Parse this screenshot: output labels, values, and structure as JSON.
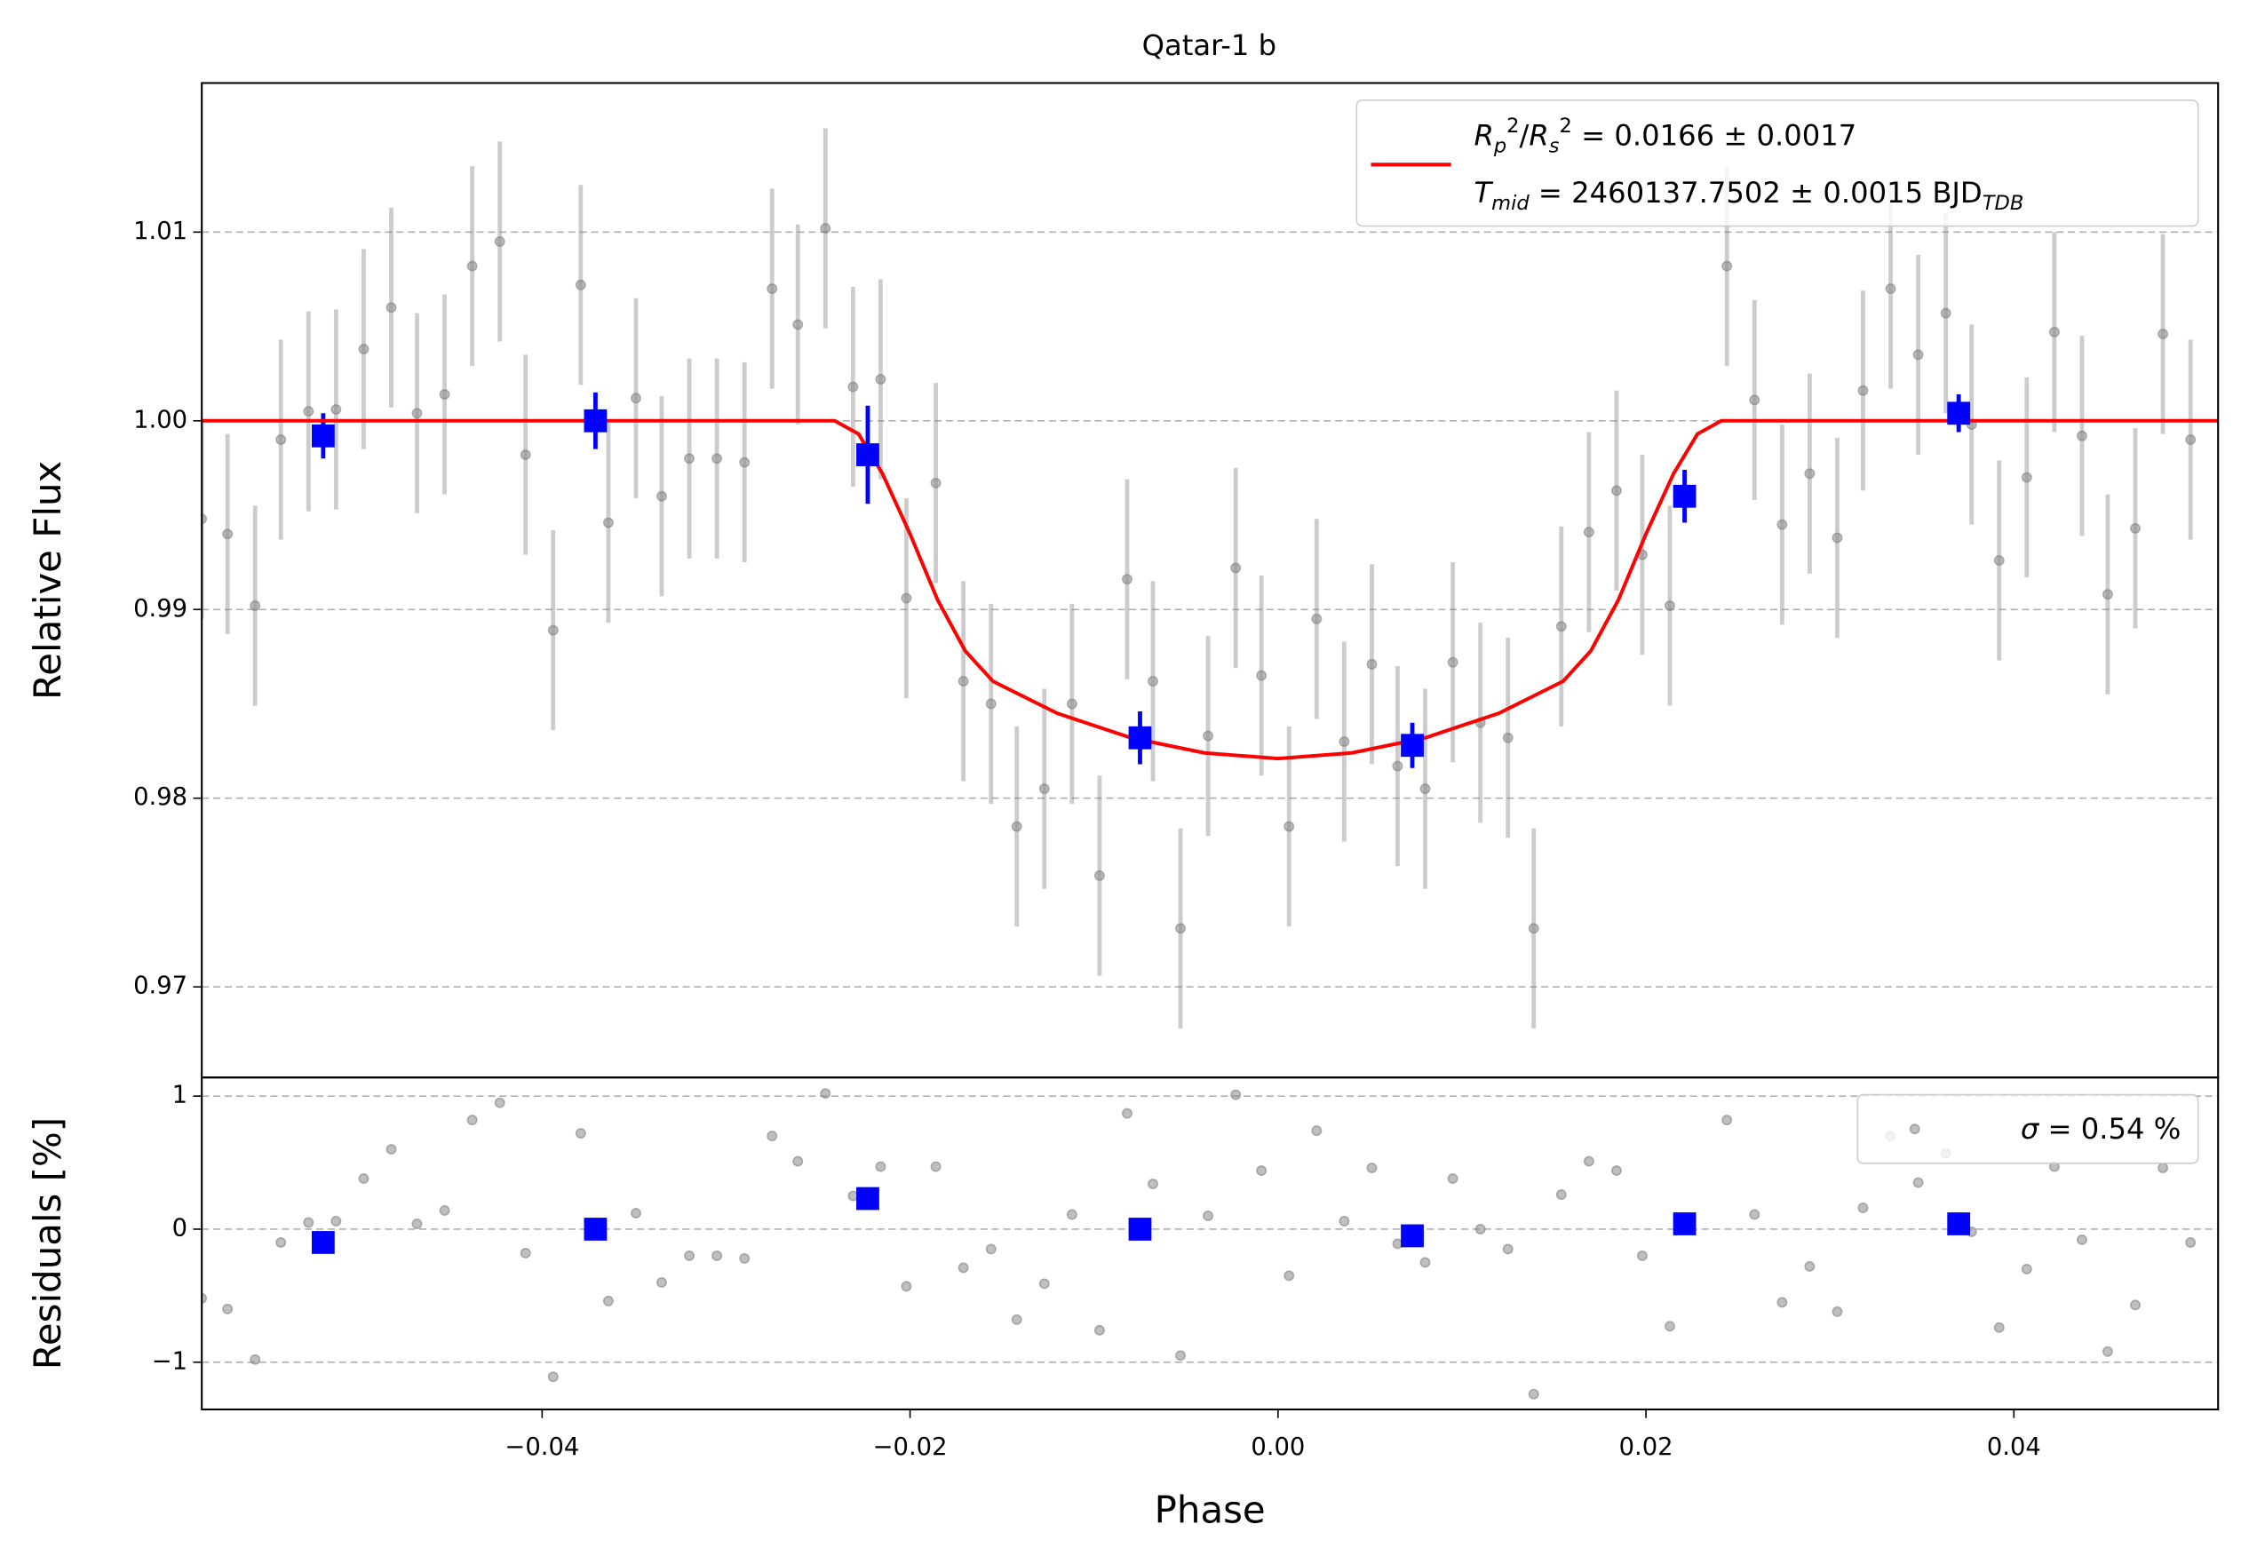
{
  "chart_data": [
    {
      "type": "scatter",
      "title": "Qatar-1 b",
      "ylabel": "Relative Flux",
      "xlim": [
        -0.0585,
        0.0511
      ],
      "ylim": [
        0.9652,
        1.0179
      ],
      "yticks": [
        0.97,
        0.98,
        0.99,
        {
          "value": 1,
          "label": "1.00"
        },
        1.01
      ],
      "grid": true,
      "legend": "upper right",
      "data": {
        "color": "#808080",
        "error": 0.0053,
        "x": [
          -0.0585,
          -0.0571,
          -0.0556,
          -0.0542,
          -0.0527,
          -0.0512,
          -0.0497,
          -0.0482,
          -0.0468,
          -0.0453,
          -0.0438,
          -0.0423,
          -0.0409,
          -0.0394,
          -0.0379,
          -0.0364,
          -0.0349,
          -0.0335,
          -0.032,
          -0.0305,
          -0.029,
          -0.0275,
          -0.0261,
          -0.0246,
          -0.0231,
          -0.0216,
          -0.0202,
          -0.0186,
          -0.0171,
          -0.0156,
          -0.0142,
          -0.0127,
          -0.0112,
          -0.0097,
          -0.0082,
          -0.0068,
          -0.0053,
          -0.0038,
          -0.0023,
          -0.0009,
          0.0006,
          0.0021,
          0.0036,
          0.0051,
          0.0065,
          0.008,
          0.0095,
          0.011,
          0.0125,
          0.0139,
          0.0154,
          0.0169,
          0.0184,
          0.0198,
          0.0213,
          0.0244,
          0.0259,
          0.0274,
          0.0289,
          0.0304,
          0.0318,
          0.0333,
          0.0348,
          0.0363,
          0.0377,
          0.0392,
          0.0407,
          0.0422,
          0.0437,
          0.0451,
          0.0466,
          0.0481,
          0.0496
        ],
        "values": [
          0.9948,
          0.994,
          0.9902,
          0.999,
          1.0005,
          1.0006,
          1.0038,
          1.006,
          1.0004,
          1.0014,
          1.0082,
          1.0095,
          0.9982,
          0.9889,
          1.0072,
          0.9946,
          1.0012,
          0.996,
          0.998,
          0.998,
          0.9978,
          1.007,
          1.0051,
          1.0102,
          1.0018,
          1.0022,
          0.9906,
          0.9967,
          0.9862,
          0.985,
          0.9785,
          0.9805,
          0.985,
          0.9759,
          0.9916,
          0.9862,
          0.9731,
          0.9833,
          0.9922,
          0.9865,
          0.9785,
          0.9895,
          0.983,
          0.9871,
          0.9817,
          0.9805,
          0.9872,
          0.984,
          0.9832,
          0.9731,
          0.9891,
          0.9941,
          0.9963,
          0.9929,
          0.9902,
          1.0082,
          1.0011,
          0.9945,
          0.9972,
          0.9938,
          1.0016,
          1.007,
          1.0035,
          1.0057,
          0.9998,
          0.9926,
          0.997,
          1.0047,
          0.9992,
          0.9908,
          0.9943,
          1.0046,
          0.999
        ]
      },
      "binned": {
        "color": "#0000ff",
        "x": [
          -0.0519,
          -0.0371,
          -0.0223,
          -0.0075,
          0.0073,
          0.0221,
          0.037
        ],
        "values": [
          0.9992,
          1.0,
          0.9982,
          0.9832,
          0.9828,
          0.996,
          1.0004
        ],
        "errors": [
          0.0012,
          0.0015,
          0.0026,
          0.0014,
          0.0012,
          0.0014,
          0.001
        ]
      },
      "model": {
        "color": "#ff0000",
        "name": [
          [
            {
              "text": "R",
              "italic": true
            },
            {
              "text": "p",
              "italic": true,
              "sub": true
            },
            {
              "text": "2",
              "sup": true
            },
            {
              "text": "/"
            },
            {
              "text": "R",
              "italic": true
            },
            {
              "text": "s",
              "italic": true,
              "sub": true
            },
            {
              "text": "2",
              "sup": true
            },
            {
              "text": " = 0.0166 ± 0.0017"
            }
          ],
          [
            {
              "text": "T",
              "italic": true
            },
            {
              "text": "mid",
              "italic": true,
              "sub": true
            },
            {
              "text": " = 2460137.7502 ± 0.0015 BJD"
            },
            {
              "text": "TDB",
              "italic": true,
              "sub": true
            }
          ]
        ],
        "x": [
          -0.0585,
          -0.0241,
          -0.0228,
          -0.0215,
          -0.02,
          -0.0185,
          -0.017,
          -0.0155,
          -0.012,
          -0.008,
          -0.004,
          0,
          0.004,
          0.008,
          0.012,
          0.0155,
          0.017,
          0.0185,
          0.02,
          0.0215,
          0.0228,
          0.0241,
          0.0511
        ],
        "values": [
          1,
          1,
          0.9993,
          0.9972,
          0.994,
          0.9905,
          0.9878,
          0.9862,
          0.9845,
          0.9832,
          0.9824,
          0.9821,
          0.9824,
          0.9832,
          0.9845,
          0.9862,
          0.9878,
          0.9905,
          0.994,
          0.9972,
          0.9993,
          1,
          1
        ]
      }
    },
    {
      "type": "scatter",
      "xlabel": "Phase",
      "ylabel": "Residuals [%]",
      "xlim": [
        -0.0585,
        0.0511
      ],
      "ylim": [
        -1.355,
        1.14
      ],
      "xticks": [
        {
          "value": -0.04,
          "label": "−0.04"
        },
        {
          "value": -0.02,
          "label": "−0.02"
        },
        {
          "value": 0,
          "label": "0.00"
        },
        0.02,
        0.04
      ],
      "yticks": [
        {
          "value": -1,
          "label": "−1"
        },
        0,
        1
      ],
      "grid": true,
      "legend": "upper right",
      "legend_text": [
        {
          "text": "σ",
          "italic": true
        },
        {
          "text": " = 0.54 %"
        }
      ],
      "data": {
        "color": "#808080",
        "x": [
          -0.0585,
          -0.0571,
          -0.0556,
          -0.0542,
          -0.0527,
          -0.0512,
          -0.0497,
          -0.0482,
          -0.0468,
          -0.0453,
          -0.0438,
          -0.0423,
          -0.0409,
          -0.0394,
          -0.0379,
          -0.0364,
          -0.0349,
          -0.0335,
          -0.032,
          -0.0305,
          -0.029,
          -0.0275,
          -0.0261,
          -0.0246,
          -0.0231,
          -0.0216,
          -0.0202,
          -0.0186,
          -0.0171,
          -0.0156,
          -0.0142,
          -0.0127,
          -0.0112,
          -0.0097,
          -0.0082,
          -0.0068,
          -0.0053,
          -0.0038,
          -0.0023,
          -0.0009,
          0.0006,
          0.0021,
          0.0036,
          0.0051,
          0.0065,
          0.008,
          0.0095,
          0.011,
          0.0125,
          0.0139,
          0.0154,
          0.0169,
          0.0184,
          0.0198,
          0.0213,
          0.0244,
          0.0259,
          0.0274,
          0.0289,
          0.0304,
          0.0318,
          0.0333,
          0.0348,
          0.0363,
          0.0377,
          0.0392,
          0.0407,
          0.0422,
          0.0437,
          0.0451,
          0.0466,
          0.0481,
          0.0496
        ],
        "values": [
          -0.52,
          -0.6,
          -0.98,
          -0.1,
          0.05,
          0.06,
          0.38,
          0.6,
          0.04,
          0.14,
          0.82,
          0.95,
          -0.18,
          -1.11,
          0.72,
          -0.54,
          0.12,
          -0.4,
          -0.2,
          -0.2,
          -0.22,
          0.7,
          0.51,
          1.02,
          0.25,
          0.47,
          -0.43,
          0.47,
          -0.29,
          -0.15,
          -0.68,
          -0.41,
          0.11,
          -0.76,
          0.87,
          0.34,
          -0.95,
          0.1,
          1.01,
          0.44,
          -0.35,
          0.74,
          0.06,
          0.46,
          -0.11,
          -0.25,
          0.38,
          0.0,
          -0.15,
          -1.24,
          0.26,
          0.51,
          0.44,
          -0.2,
          -0.73,
          0.82,
          0.11,
          -0.55,
          -0.28,
          -0.62,
          0.16,
          0.7,
          0.35,
          0.57,
          -0.02,
          -0.74,
          -0.3,
          0.47,
          -0.08,
          -0.92,
          -0.57,
          0.46,
          -0.1
        ]
      },
      "binned": {
        "color": "#0000ff",
        "x": [
          -0.0519,
          -0.0371,
          -0.0223,
          -0.0075,
          0.0073,
          0.0221,
          0.037
        ],
        "values": [
          -0.1,
          0.0,
          0.23,
          0.0,
          -0.05,
          0.04,
          0.04
        ]
      }
    }
  ]
}
